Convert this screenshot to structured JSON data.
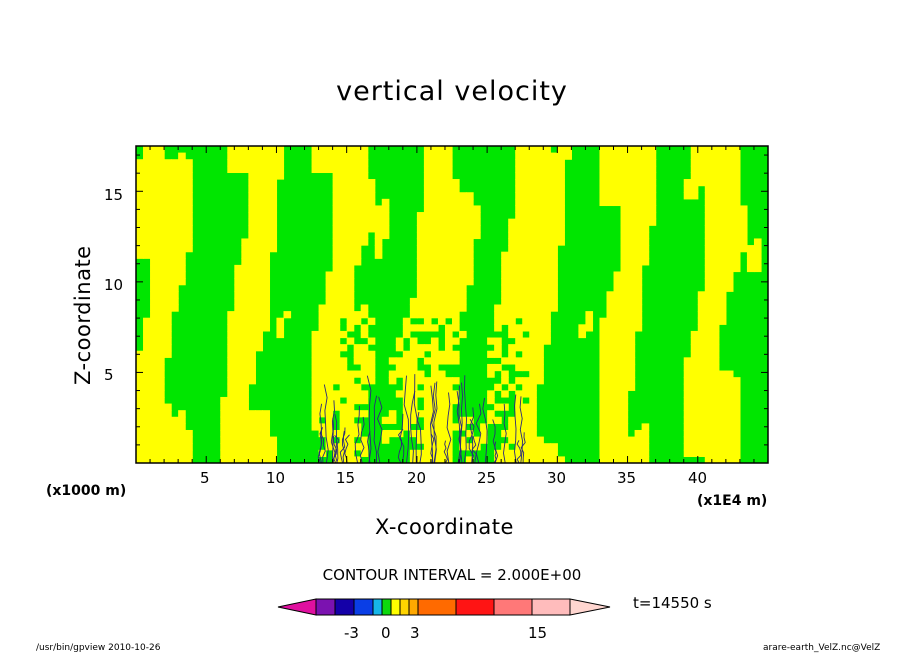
{
  "chart_data": {
    "type": "heatmap",
    "title": "vertical velocity",
    "xlabel": "X-coordinate",
    "ylabel": "Z-coordinate",
    "x_unit": "(x1000 m)",
    "x_unit_secondary": "(x1E4 m)",
    "xlim": [
      0,
      45
    ],
    "ylim": [
      0,
      17.5
    ],
    "x_ticks": [
      5,
      10,
      15,
      20,
      25,
      30,
      35,
      40
    ],
    "x_tick_labels": [
      "5",
      "10",
      "15",
      "20",
      "25",
      "30",
      "35",
      "40"
    ],
    "y_ticks": [
      5,
      10,
      15
    ],
    "y_tick_labels": [
      "5",
      "10",
      "15"
    ],
    "fill_colors": {
      "positive_weak": "#ffff00",
      "negative_weak": "#00e600"
    },
    "field_pattern": "vertical bands alternating yellow/green with noisy small-scale contours in the center (x 13–28, z 0–8)",
    "contour_interval": "CONTOUR INTERVAL = 2.000E+00",
    "colorbar": {
      "colors": [
        "#e0109f",
        "#7b12b0",
        "#1400a8",
        "#0a3ee6",
        "#16b6e8",
        "#0dd90d",
        "#ffff00",
        "#ffd400",
        "#ffa800",
        "#ff6a00",
        "#ff1414",
        "#ff7878",
        "#ffbcbc",
        "#ffd6d0"
      ],
      "tick_labels": [
        "-3",
        "0",
        "3",
        "15"
      ]
    },
    "time_label": "t=14550 s"
  },
  "footer": {
    "left": "/usr/bin/gpview   2010-10-26",
    "right": "arare-earth_VelZ.nc@VelZ"
  }
}
